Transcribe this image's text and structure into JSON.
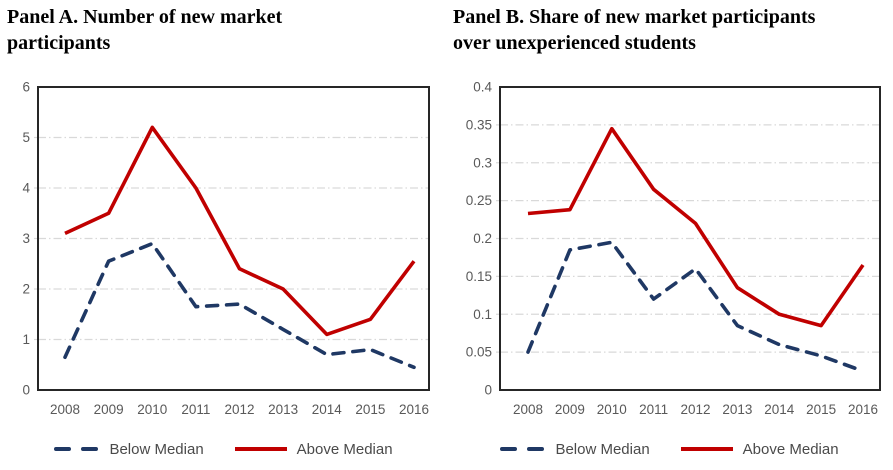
{
  "colors": {
    "background": "#ffffff",
    "below_median": "#1f3864",
    "above_median": "#c00000",
    "gridline": "#d9d9d9",
    "plot_border": "#262626",
    "axis_text": "#595959",
    "legend_text": "#4a4a4a",
    "title_text": "#000000"
  },
  "panels": [
    {
      "id": "A",
      "title_line1": "Panel A. Number of new market",
      "title_line2": "participants",
      "legend": {
        "below_label": "Below Median",
        "above_label": "Above Median"
      }
    },
    {
      "id": "B",
      "title_line1": "Panel B. Share of new market participants",
      "title_line2": "over unexperienced students",
      "legend": {
        "below_label": "Below Median",
        "above_label": "Above Median"
      }
    }
  ],
  "chart_data": [
    {
      "type": "line",
      "title": "Panel A. Number of new market participants",
      "categories": [
        "2008",
        "2009",
        "2010",
        "2011",
        "2012",
        "2013",
        "2014",
        "2015",
        "2016"
      ],
      "series": [
        {
          "name": "Below Median",
          "style": "dashed",
          "color": "#1f3864",
          "values": [
            0.65,
            2.55,
            2.9,
            1.65,
            1.7,
            1.2,
            0.7,
            0.8,
            0.45
          ]
        },
        {
          "name": "Above Median",
          "style": "solid",
          "color": "#c00000",
          "values": [
            3.1,
            3.5,
            5.2,
            4.0,
            2.4,
            2.0,
            1.1,
            1.4,
            2.55
          ]
        }
      ],
      "xlabel": "",
      "ylabel": "",
      "ylim": [
        0,
        6
      ],
      "yticks": [
        0,
        1,
        2,
        3,
        4,
        5,
        6
      ],
      "ytick_labels": [
        "0",
        "1",
        "2",
        "3",
        "4",
        "5",
        "6"
      ],
      "grid": true,
      "grid_style": "dash-dot",
      "legend_position": "bottom"
    },
    {
      "type": "line",
      "title": "Panel B. Share of new market participants over unexperienced students",
      "categories": [
        "2008",
        "2009",
        "2010",
        "2011",
        "2012",
        "2013",
        "2014",
        "2015",
        "2016"
      ],
      "series": [
        {
          "name": "Below Median",
          "style": "dashed",
          "color": "#1f3864",
          "values": [
            0.05,
            0.185,
            0.195,
            0.12,
            0.16,
            0.085,
            0.06,
            0.045,
            0.025
          ]
        },
        {
          "name": "Above Median",
          "style": "solid",
          "color": "#c00000",
          "values": [
            0.233,
            0.238,
            0.345,
            0.265,
            0.22,
            0.135,
            0.1,
            0.085,
            0.165
          ]
        }
      ],
      "xlabel": "",
      "ylabel": "",
      "ylim": [
        0,
        0.4
      ],
      "yticks": [
        0,
        0.05,
        0.1,
        0.15,
        0.2,
        0.25,
        0.3,
        0.35,
        0.4
      ],
      "ytick_labels": [
        "0",
        "0.05",
        "0.1",
        "0.15",
        "0.2",
        "0.25",
        "0.3",
        "0.35",
        "0.4"
      ],
      "grid": true,
      "grid_style": "dash-dot",
      "legend_position": "bottom"
    }
  ]
}
